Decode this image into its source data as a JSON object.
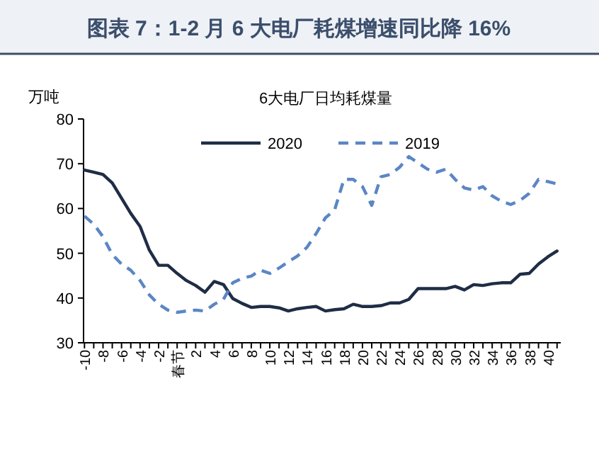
{
  "chart_data": {
    "type": "line",
    "title": "图表 7：1-2 月 6 大电厂耗煤增速同比降 16%",
    "subtitle": "6大电厂日均耗煤量",
    "ylabel": "万吨",
    "categories": [
      "-10",
      null,
      "-8",
      null,
      "-6",
      null,
      "-4",
      null,
      "-2",
      null,
      "春节",
      null,
      "2",
      null,
      "4",
      null,
      "6",
      null,
      "8",
      null,
      "10",
      null,
      "12",
      null,
      "14",
      null,
      "16",
      null,
      "18",
      null,
      "20",
      null,
      "22",
      null,
      "24",
      null,
      "26",
      null,
      "28",
      null,
      "30",
      null,
      "32",
      null,
      "34",
      null,
      "36",
      null,
      "38",
      null,
      "40",
      null
    ],
    "series": [
      {
        "name": "2020",
        "color": "#1f2d45",
        "line_style": "solid",
        "values": [
          68.6,
          68.1,
          67.6,
          65.7,
          62.3,
          58.9,
          56,
          50.7,
          47.3,
          47.3,
          45.5,
          43.9,
          42.8,
          41.3,
          43.7,
          43,
          39.9,
          38.8,
          37.9,
          38.1,
          38.1,
          37.8,
          37.1,
          37.6,
          37.9,
          38.1,
          37.1,
          37.4,
          37.6,
          38.6,
          38.1,
          38.1,
          38.3,
          38.9,
          38.9,
          39.7,
          42.1,
          42.1,
          42.1,
          42.1,
          42.6,
          41.8,
          43,
          42.8,
          43.2,
          43.4,
          43.4,
          45.3,
          45.5,
          47.6,
          49.2,
          50.5
        ]
      },
      {
        "name": "2019",
        "color": "#5b86c5",
        "line_style": "dashed",
        "values": [
          58.3,
          56.5,
          53.7,
          49.7,
          47.6,
          46.2,
          43.9,
          40.7,
          38.6,
          37.3,
          36.8,
          37.1,
          37.3,
          37.1,
          38.6,
          39.7,
          43.4,
          44.4,
          44.9,
          46.2,
          45.5,
          46.7,
          48.1,
          49.4,
          51.3,
          54.4,
          57.9,
          59.7,
          66.5,
          66.5,
          64.9,
          60.7,
          67.1,
          67.6,
          69.2,
          71.6,
          70.2,
          68.8,
          68.1,
          68.8,
          66.5,
          64.6,
          64.1,
          64.9,
          62.8,
          61.6,
          60.9,
          61.8,
          63.4,
          66.5,
          66,
          65.5
        ]
      }
    ],
    "ylim": [
      30,
      80
    ],
    "yticks": [
      30,
      40,
      50,
      60,
      70,
      80
    ],
    "grid": false,
    "legend": "top",
    "marker": "none"
  }
}
